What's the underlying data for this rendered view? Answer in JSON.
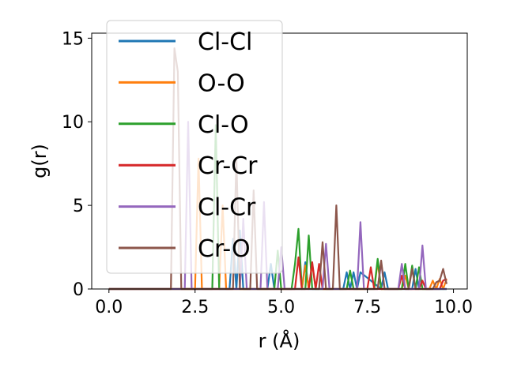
{
  "chart_data": {
    "type": "line",
    "title": "",
    "xlabel": "r (Å)",
    "ylabel": "g(r)",
    "xlim": [
      -0.5,
      10.4
    ],
    "ylim": [
      0,
      15.3
    ],
    "xticks": [
      0.0,
      2.5,
      5.0,
      7.5,
      10.0
    ],
    "xtick_labels": [
      "0.0",
      "2.5",
      "5.0",
      "7.5",
      "10.0"
    ],
    "yticks": [
      0,
      5,
      10,
      15
    ],
    "ytick_labels": [
      "0",
      "5",
      "10",
      "15"
    ],
    "grid": false,
    "legend": "upper-left",
    "series": [
      {
        "name": "Cl-Cl",
        "color": "#1f77b4",
        "x": [
          0.0,
          3.5,
          3.6,
          3.7,
          3.8,
          3.9,
          4.6,
          4.7,
          4.8,
          5.6,
          5.7,
          5.8,
          6.8,
          6.9,
          7.0,
          7.1,
          7.2,
          7.3,
          7.9,
          8.0,
          8.1,
          8.8,
          8.9,
          9.0,
          9.8
        ],
        "y": [
          0.0,
          0.0,
          3.0,
          0.0,
          3.5,
          0.0,
          0.0,
          1.5,
          0.0,
          0.0,
          1.6,
          0.0,
          0.0,
          1.0,
          0.0,
          1.0,
          0.0,
          1.0,
          0.0,
          1.0,
          0.0,
          0.0,
          1.2,
          0.0,
          0.0
        ]
      },
      {
        "name": "O-O",
        "color": "#ff7f0e",
        "x": [
          0.0,
          2.5,
          2.6,
          2.7,
          3.2,
          3.3,
          3.4,
          5.6,
          5.7,
          5.8,
          5.9,
          6.0,
          6.1,
          7.7,
          7.8,
          7.9,
          8.5,
          8.6,
          8.7,
          9.3,
          9.4,
          9.5,
          9.6,
          9.7,
          9.8
        ],
        "y": [
          0.0,
          0.0,
          7.8,
          0.0,
          0.0,
          5.0,
          0.0,
          0.0,
          1.4,
          0.0,
          1.5,
          0.0,
          0.0,
          0.0,
          1.6,
          0.0,
          0.0,
          0.8,
          0.0,
          0.0,
          0.5,
          0.0,
          0.6,
          0.0,
          0.6
        ]
      },
      {
        "name": "Cl-O",
        "color": "#2ca02c",
        "x": [
          0.0,
          3.0,
          3.1,
          3.2,
          3.3,
          4.8,
          4.9,
          5.0,
          5.3,
          5.4,
          5.5,
          5.6,
          5.7,
          5.8,
          5.9,
          6.0,
          6.9,
          7.0,
          7.1,
          7.7,
          7.8,
          7.9,
          8.5,
          8.6,
          8.7,
          8.8,
          8.9,
          9.0,
          9.1,
          9.2,
          9.8
        ],
        "y": [
          0.0,
          0.0,
          9.8,
          0.0,
          0.0,
          0.0,
          2.3,
          0.0,
          0.0,
          1.5,
          3.6,
          0.0,
          0.0,
          3.2,
          0.0,
          0.0,
          0.0,
          1.1,
          0.0,
          0.0,
          1.8,
          0.0,
          0.0,
          1.5,
          0.0,
          1.4,
          0.0,
          1.3,
          0.0,
          0.0,
          0.0
        ]
      },
      {
        "name": "Cr-Cr",
        "color": "#d62728",
        "x": [
          0.0,
          5.4,
          5.5,
          5.6,
          5.7,
          5.8,
          5.9,
          6.0,
          6.1,
          6.2,
          6.3,
          7.5,
          7.6,
          7.7,
          8.4,
          8.5,
          8.6,
          9.0,
          9.1,
          9.2,
          9.6,
          9.7,
          9.8
        ],
        "y": [
          0.0,
          0.0,
          1.9,
          0.0,
          0.0,
          0.0,
          1.6,
          0.0,
          1.5,
          0.0,
          0.0,
          0.0,
          1.3,
          0.0,
          0.0,
          0.8,
          0.0,
          0.0,
          0.5,
          0.0,
          0.0,
          0.5,
          0.6
        ]
      },
      {
        "name": "Cl-Cr",
        "color": "#9467bd",
        "x": [
          0.0,
          2.1,
          2.2,
          2.3,
          2.4,
          3.8,
          3.9,
          4.0,
          4.4,
          4.5,
          4.6,
          4.9,
          5.0,
          5.1,
          6.2,
          6.3,
          6.4,
          7.2,
          7.3,
          7.4,
          7.8,
          7.9,
          8.0,
          8.4,
          8.5,
          8.6,
          9.0,
          9.1,
          9.2,
          9.3,
          9.8
        ],
        "y": [
          0.0,
          0.0,
          0.0,
          10.0,
          0.0,
          0.0,
          4.2,
          0.0,
          0.0,
          5.2,
          0.0,
          0.0,
          2.5,
          0.0,
          0.0,
          2.7,
          0.0,
          0.0,
          4.0,
          0.0,
          0.0,
          1.6,
          0.0,
          0.0,
          1.5,
          0.0,
          0.0,
          2.6,
          0.0,
          0.0,
          0.0
        ]
      },
      {
        "name": "Cr-O",
        "color": "#8c564b",
        "x": [
          0.0,
          1.7,
          1.8,
          1.9,
          2.0,
          2.1,
          3.5,
          3.6,
          3.7,
          3.8,
          4.1,
          4.2,
          4.3,
          6.0,
          6.1,
          6.2,
          6.3,
          6.5,
          6.6,
          6.7,
          7.8,
          7.9,
          8.0,
          8.7,
          8.8,
          8.9,
          9.4,
          9.5,
          9.6,
          9.7,
          9.8
        ],
        "y": [
          0.0,
          0.0,
          0.0,
          14.4,
          13.0,
          0.0,
          0.0,
          0.0,
          7.8,
          0.0,
          0.0,
          5.9,
          0.0,
          0.0,
          0.0,
          2.8,
          0.0,
          0.0,
          5.0,
          0.0,
          0.0,
          1.7,
          0.0,
          0.0,
          1.2,
          0.0,
          0.0,
          0.4,
          0.5,
          1.2,
          0.3
        ]
      }
    ]
  }
}
